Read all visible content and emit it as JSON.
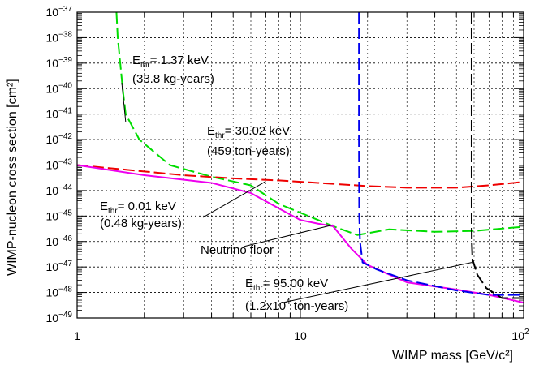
{
  "chart_data": {
    "type": "line",
    "xlabel": "WIMP mass [GeV/c²]",
    "ylabel": "WIMP-nucleon cross section [cm²]",
    "xscale": "log",
    "yscale": "log",
    "xlim": [
      1,
      100
    ],
    "ylim": [
      1e-49,
      1e-37
    ],
    "grid": true,
    "x_ticks": [
      {
        "value": 1,
        "label": "1"
      },
      {
        "value": 10,
        "label": "10"
      },
      {
        "value": 100,
        "label": "10",
        "sup": "2"
      }
    ],
    "y_ticks": [
      {
        "value": 1e-49,
        "base": "10",
        "exp": "−49"
      },
      {
        "value": 1e-48,
        "base": "10",
        "exp": "−48"
      },
      {
        "value": 1e-47,
        "base": "10",
        "exp": "−47"
      },
      {
        "value": 1e-46,
        "base": "10",
        "exp": "−46"
      },
      {
        "value": 1e-45,
        "base": "10",
        "exp": "−45"
      },
      {
        "value": 1e-44,
        "base": "10",
        "exp": "−44"
      },
      {
        "value": 1e-43,
        "base": "10",
        "exp": "−43"
      },
      {
        "value": 1e-42,
        "base": "10",
        "exp": "−42"
      },
      {
        "value": 1e-41,
        "base": "10",
        "exp": "−41"
      },
      {
        "value": 1e-40,
        "base": "10",
        "exp": "−40"
      },
      {
        "value": 1e-39,
        "base": "10",
        "exp": "−39"
      },
      {
        "value": 1e-38,
        "base": "10",
        "exp": "−38"
      },
      {
        "value": 1e-37,
        "base": "10",
        "exp": "−37"
      }
    ],
    "series": [
      {
        "key": "green",
        "color": "#00dd00",
        "style": "dashed",
        "points": [
          [
            1.5,
            1e-37
          ],
          [
            1.52,
            1e-38
          ],
          [
            1.56,
            1e-39
          ],
          [
            1.6,
            1e-40
          ],
          [
            1.65,
            1e-41
          ],
          [
            1.9,
            1e-42
          ],
          [
            2.6,
            1e-43
          ],
          [
            4.0,
            3.5e-44
          ],
          [
            6.0,
            1.6e-44
          ],
          [
            8.0,
            3e-45
          ],
          [
            12.0,
            7e-46
          ],
          [
            14.0,
            4e-46
          ],
          [
            18.0,
            1.8e-46
          ],
          [
            25.0,
            3e-46
          ],
          [
            40.0,
            2.4e-46
          ],
          [
            60.0,
            2.6e-46
          ],
          [
            100.0,
            3.8e-46
          ]
        ]
      },
      {
        "key": "red",
        "color": "#ee0000",
        "style": "dashed",
        "points": [
          [
            1.0,
            1e-43
          ],
          [
            3.0,
            4e-44
          ],
          [
            5.0,
            3e-44
          ],
          [
            8.0,
            2.5e-44
          ],
          [
            12.0,
            2e-44
          ],
          [
            20.0,
            1.5e-44
          ],
          [
            30.0,
            1.3e-44
          ],
          [
            50.0,
            1.3e-44
          ],
          [
            70.0,
            1.6e-44
          ],
          [
            100.0,
            2.2e-44
          ]
        ]
      },
      {
        "key": "magenta",
        "color": "#ee00ee",
        "style": "solid",
        "points": [
          [
            1.0,
            1e-43
          ],
          [
            2.0,
            4e-44
          ],
          [
            4.0,
            2e-44
          ],
          [
            6.0,
            8e-45
          ],
          [
            8.0,
            2e-45
          ],
          [
            10.0,
            7e-46
          ],
          [
            12.0,
            5e-46
          ],
          [
            14.0,
            4e-46
          ],
          [
            17.0,
            5e-47
          ],
          [
            20.0,
            1.2e-47
          ],
          [
            30.0,
            2.5e-48
          ],
          [
            50.0,
            1.3e-48
          ],
          [
            70.0,
            8e-49
          ],
          [
            100.0,
            4e-49
          ]
        ]
      },
      {
        "key": "blue",
        "color": "#0000ee",
        "style": "dashed",
        "points": [
          [
            18.3,
            1e-37
          ],
          [
            18.3,
            1e-42
          ],
          [
            18.35,
            1e-45
          ],
          [
            18.5,
            1e-46
          ],
          [
            19.0,
            1.5e-47
          ],
          [
            22.0,
            8e-48
          ],
          [
            30.0,
            3e-48
          ],
          [
            50.0,
            1.2e-48
          ],
          [
            70.0,
            8e-49
          ],
          [
            100.0,
            8e-49
          ]
        ]
      },
      {
        "key": "black",
        "color": "#000000",
        "style": "dashed",
        "points": [
          [
            58.5,
            1e-37
          ],
          [
            58.5,
            1e-45
          ],
          [
            58.6,
            1e-46
          ],
          [
            59.0,
            2e-47
          ],
          [
            62.0,
            5e-48
          ],
          [
            68.0,
            1.5e-48
          ],
          [
            80.0,
            6e-49
          ],
          [
            100.0,
            6e-49
          ]
        ]
      }
    ],
    "annotations": [
      {
        "key": "green",
        "prefix": "E",
        "sub": "thr",
        "value": "=  1.37 keV",
        "exposure": "(33.8 kg-years)",
        "target": [
          1.65,
          5e-42
        ]
      },
      {
        "key": "blue",
        "prefix": "E",
        "sub": "thr",
        "value": "= 30.02 keV",
        "exposure": "(459 ton-years)",
        "target": null
      },
      {
        "key": "red",
        "prefix": "E",
        "sub": "thr",
        "value": "=  0.01 keV",
        "exposure": "(0.48 kg-years)",
        "target": [
          7.0,
          2.3e-44
        ]
      },
      {
        "key": "neutrino",
        "text": "Neutrino floor",
        "target": [
          14.0,
          4.5e-46
        ]
      },
      {
        "key": "black",
        "prefix": "E",
        "sub": "thr",
        "value": "= 95.00 keV",
        "exposure_pre": "(1.2x10",
        "exposure_sup": "4",
        "exposure_post": " ton-years)",
        "target": [
          58.5,
          1.5e-47
        ]
      }
    ]
  }
}
